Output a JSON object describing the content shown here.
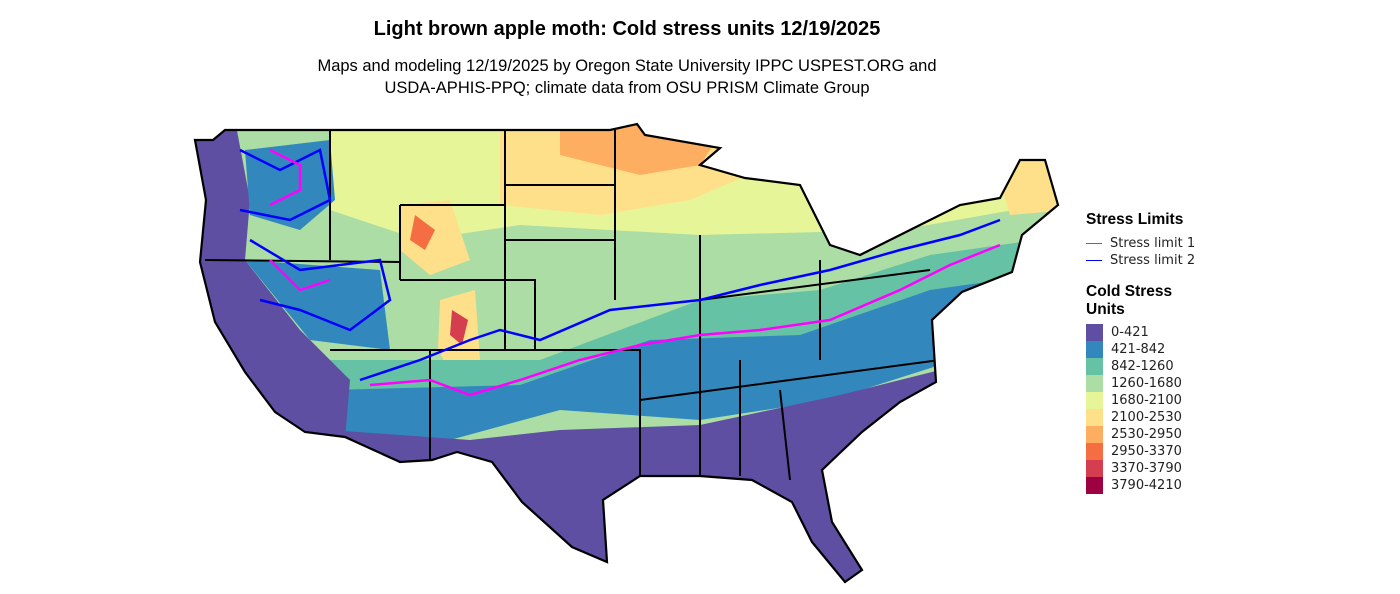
{
  "title": "Light brown apple moth: Cold stress units 12/19/2025",
  "subtitle_line1": "Maps and modeling 12/19/2025 by Oregon State University IPPC USPEST.ORG and",
  "subtitle_line2": "USDA-APHIS-PPQ; climate data from OSU PRISM Climate Group",
  "legend": {
    "lines_title": "Stress Limits",
    "lines": [
      {
        "label": "Stress limit 1",
        "color": "#FF00FF"
      },
      {
        "label": "Stress limit 2",
        "color": "#0000FF"
      }
    ],
    "fill_title_1": "Cold Stress",
    "fill_title_2": "Units",
    "classes": [
      {
        "label": "0-421",
        "color": "#5E4FA2"
      },
      {
        "label": "421-842",
        "color": "#3288BD"
      },
      {
        "label": "842-1260",
        "color": "#66C2A5"
      },
      {
        "label": "1260-1680",
        "color": "#ABDDA4"
      },
      {
        "label": "1680-2100",
        "color": "#E6F598"
      },
      {
        "label": "2100-2530",
        "color": "#FEE08B"
      },
      {
        "label": "2530-2950",
        "color": "#FDAE61"
      },
      {
        "label": "2950-3370",
        "color": "#F46D43"
      },
      {
        "label": "3370-3790",
        "color": "#D53E4F"
      },
      {
        "label": "3790-4210",
        "color": "#9E0142"
      }
    ]
  }
}
